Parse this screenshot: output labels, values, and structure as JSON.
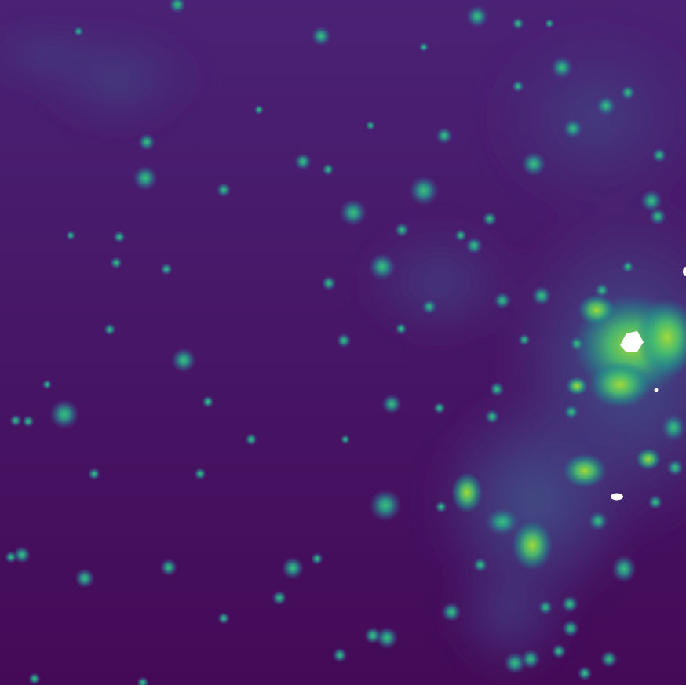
{
  "image": {
    "subject": "astronomical-field-star-cluster",
    "colormap": "viridis",
    "colors": {
      "background_dark": "#440a57",
      "background_mid": "#472d7b",
      "haze": "#3b5a8c",
      "star_core": "#2fb47c",
      "bright_emission": "#7ad151",
      "saturated": "#ffffff"
    }
  }
}
